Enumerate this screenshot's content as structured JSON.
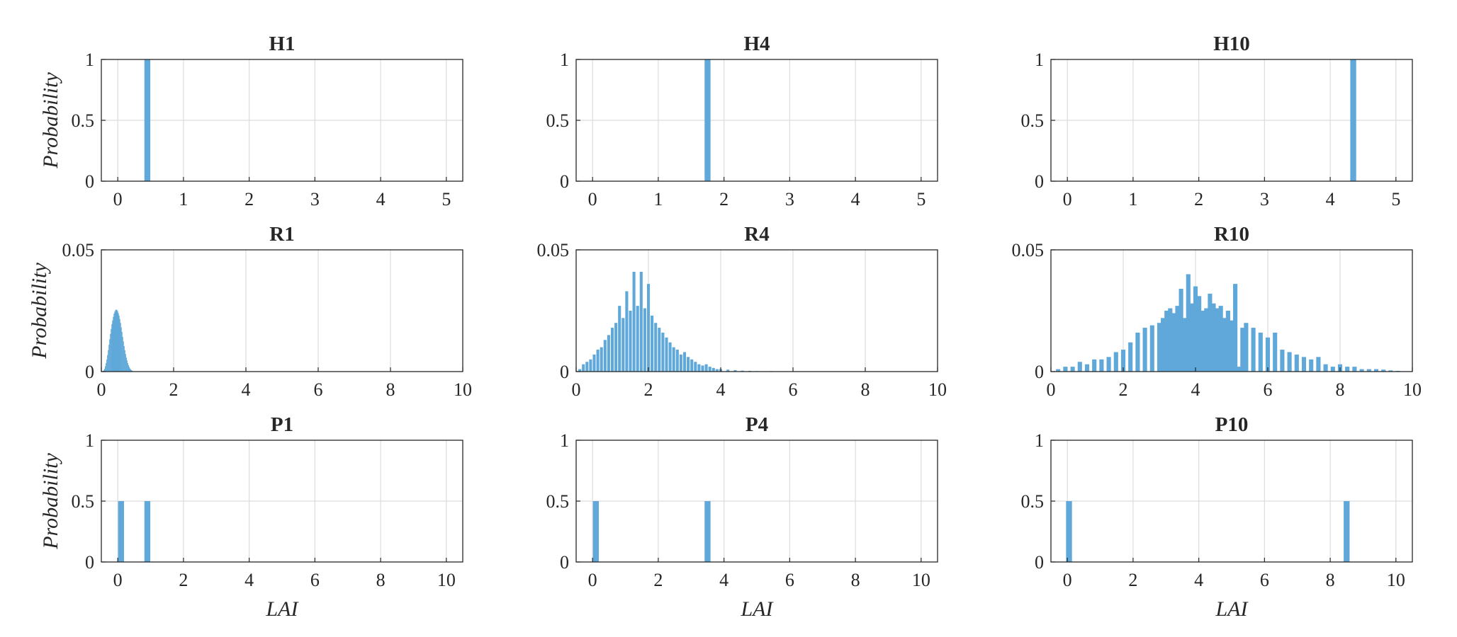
{
  "figure": {
    "bar_color": "#5fa8d9",
    "grid": true
  },
  "chart_data": [
    {
      "type": "bar",
      "title": "H1",
      "ylabel": "Probability",
      "xlabel": "",
      "xlim": [
        -0.25,
        5.25
      ],
      "ylim": [
        0,
        1
      ],
      "xticks": [
        0,
        1,
        2,
        3,
        4,
        5
      ],
      "yticks": [
        0,
        0.5,
        1
      ],
      "ytick_labels": [
        "0",
        "0.5",
        "1"
      ],
      "bar_width": 0.09,
      "bars": [
        {
          "x": 0.45,
          "y": 1
        }
      ]
    },
    {
      "type": "bar",
      "title": "H4",
      "ylabel": "",
      "xlabel": "",
      "xlim": [
        -0.25,
        5.25
      ],
      "ylim": [
        0,
        1
      ],
      "xticks": [
        0,
        1,
        2,
        3,
        4,
        5
      ],
      "yticks": [
        0,
        0.5,
        1
      ],
      "ytick_labels": [
        "0",
        "0.5",
        "1"
      ],
      "bar_width": 0.09,
      "bars": [
        {
          "x": 1.75,
          "y": 1
        }
      ]
    },
    {
      "type": "bar",
      "title": "H10",
      "ylabel": "",
      "xlabel": "",
      "xlim": [
        -0.25,
        5.25
      ],
      "ylim": [
        0,
        1
      ],
      "xticks": [
        0,
        1,
        2,
        3,
        4,
        5
      ],
      "yticks": [
        0,
        0.5,
        1
      ],
      "ytick_labels": [
        "0",
        "0.5",
        "1"
      ],
      "bar_width": 0.09,
      "bars": [
        {
          "x": 4.35,
          "y": 1
        }
      ]
    },
    {
      "type": "bar",
      "title": "R1",
      "ylabel": "Probability",
      "xlabel": "",
      "xlim": [
        0,
        10
      ],
      "ylim": [
        0,
        0.05
      ],
      "xticks": [
        0,
        2,
        4,
        6,
        8,
        10
      ],
      "yticks": [
        0,
        0.05
      ],
      "ytick_labels": [
        "0",
        "0.05"
      ],
      "bar_width": 0.02,
      "bars": [
        {
          "x": 0.05,
          "y": 0.0003
        },
        {
          "x": 0.07,
          "y": 0.0006
        },
        {
          "x": 0.09,
          "y": 0.0012
        },
        {
          "x": 0.11,
          "y": 0.0022
        },
        {
          "x": 0.13,
          "y": 0.0035
        },
        {
          "x": 0.15,
          "y": 0.005
        },
        {
          "x": 0.17,
          "y": 0.0068
        },
        {
          "x": 0.19,
          "y": 0.0088
        },
        {
          "x": 0.21,
          "y": 0.011
        },
        {
          "x": 0.23,
          "y": 0.0133
        },
        {
          "x": 0.25,
          "y": 0.0155
        },
        {
          "x": 0.27,
          "y": 0.0175
        },
        {
          "x": 0.29,
          "y": 0.0195
        },
        {
          "x": 0.31,
          "y": 0.021
        },
        {
          "x": 0.33,
          "y": 0.0225
        },
        {
          "x": 0.35,
          "y": 0.0238
        },
        {
          "x": 0.37,
          "y": 0.0246
        },
        {
          "x": 0.39,
          "y": 0.0252
        },
        {
          "x": 0.41,
          "y": 0.0255
        },
        {
          "x": 0.43,
          "y": 0.0253
        },
        {
          "x": 0.45,
          "y": 0.0248
        },
        {
          "x": 0.47,
          "y": 0.024
        },
        {
          "x": 0.49,
          "y": 0.023
        },
        {
          "x": 0.51,
          "y": 0.0216
        },
        {
          "x": 0.53,
          "y": 0.02
        },
        {
          "x": 0.55,
          "y": 0.0182
        },
        {
          "x": 0.57,
          "y": 0.0163
        },
        {
          "x": 0.59,
          "y": 0.0143
        },
        {
          "x": 0.61,
          "y": 0.0124
        },
        {
          "x": 0.63,
          "y": 0.0105
        },
        {
          "x": 0.65,
          "y": 0.0088
        },
        {
          "x": 0.67,
          "y": 0.0072
        },
        {
          "x": 0.69,
          "y": 0.0058
        },
        {
          "x": 0.71,
          "y": 0.0046
        },
        {
          "x": 0.73,
          "y": 0.0035
        },
        {
          "x": 0.75,
          "y": 0.0026
        },
        {
          "x": 0.77,
          "y": 0.0019
        },
        {
          "x": 0.79,
          "y": 0.0013
        },
        {
          "x": 0.81,
          "y": 0.0009
        },
        {
          "x": 0.83,
          "y": 0.0006
        },
        {
          "x": 0.85,
          "y": 0.0004
        },
        {
          "x": 0.87,
          "y": 0.0002
        },
        {
          "x": 0.9,
          "y": 0.0001
        }
      ]
    },
    {
      "type": "bar",
      "title": "R4",
      "ylabel": "",
      "xlabel": "",
      "xlim": [
        0,
        10
      ],
      "ylim": [
        0,
        0.05
      ],
      "xticks": [
        0,
        2,
        4,
        6,
        8,
        10
      ],
      "yticks": [
        0,
        0.05
      ],
      "ytick_labels": [
        "0",
        "0.05"
      ],
      "bar_width": 0.08,
      "bars": [
        {
          "x": 0.1,
          "y": 0.001
        },
        {
          "x": 0.2,
          "y": 0.003
        },
        {
          "x": 0.3,
          "y": 0.004
        },
        {
          "x": 0.4,
          "y": 0.005
        },
        {
          "x": 0.5,
          "y": 0.007
        },
        {
          "x": 0.6,
          "y": 0.009
        },
        {
          "x": 0.7,
          "y": 0.01
        },
        {
          "x": 0.8,
          "y": 0.013
        },
        {
          "x": 0.9,
          "y": 0.015
        },
        {
          "x": 1.0,
          "y": 0.018
        },
        {
          "x": 1.1,
          "y": 0.02
        },
        {
          "x": 1.2,
          "y": 0.027
        },
        {
          "x": 1.3,
          "y": 0.022
        },
        {
          "x": 1.4,
          "y": 0.033
        },
        {
          "x": 1.5,
          "y": 0.025
        },
        {
          "x": 1.6,
          "y": 0.041
        },
        {
          "x": 1.7,
          "y": 0.027
        },
        {
          "x": 1.8,
          "y": 0.041
        },
        {
          "x": 1.9,
          "y": 0.026
        },
        {
          "x": 2.0,
          "y": 0.036
        },
        {
          "x": 2.1,
          "y": 0.023
        },
        {
          "x": 2.2,
          "y": 0.02
        },
        {
          "x": 2.3,
          "y": 0.018
        },
        {
          "x": 2.4,
          "y": 0.016
        },
        {
          "x": 2.5,
          "y": 0.014
        },
        {
          "x": 2.6,
          "y": 0.012
        },
        {
          "x": 2.7,
          "y": 0.01
        },
        {
          "x": 2.8,
          "y": 0.009
        },
        {
          "x": 2.9,
          "y": 0.007
        },
        {
          "x": 3.0,
          "y": 0.008
        },
        {
          "x": 3.1,
          "y": 0.006
        },
        {
          "x": 3.2,
          "y": 0.005
        },
        {
          "x": 3.3,
          "y": 0.004
        },
        {
          "x": 3.4,
          "y": 0.003
        },
        {
          "x": 3.5,
          "y": 0.0025
        },
        {
          "x": 3.6,
          "y": 0.003
        },
        {
          "x": 3.7,
          "y": 0.002
        },
        {
          "x": 3.8,
          "y": 0.0015
        },
        {
          "x": 3.9,
          "y": 0.001
        },
        {
          "x": 4.0,
          "y": 0.001
        },
        {
          "x": 4.2,
          "y": 0.0008
        },
        {
          "x": 4.4,
          "y": 0.0006
        },
        {
          "x": 4.6,
          "y": 0.0004
        },
        {
          "x": 4.8,
          "y": 0.0003
        },
        {
          "x": 5.0,
          "y": 0.0002
        },
        {
          "x": 5.4,
          "y": 0.0002
        },
        {
          "x": 5.8,
          "y": 0.0001
        }
      ]
    },
    {
      "type": "bar",
      "title": "R10",
      "ylabel": "",
      "xlabel": "",
      "xlim": [
        0,
        10
      ],
      "ylim": [
        0,
        0.05
      ],
      "xticks": [
        0,
        2,
        4,
        6,
        8,
        10
      ],
      "yticks": [
        0,
        0.05
      ],
      "ytick_labels": [
        "0",
        "0.05"
      ],
      "bar_width": 0.12,
      "bars": [
        {
          "x": 0.2,
          "y": 0.001
        },
        {
          "x": 0.4,
          "y": 0.002
        },
        {
          "x": 0.6,
          "y": 0.002
        },
        {
          "x": 0.8,
          "y": 0.004
        },
        {
          "x": 1.0,
          "y": 0.003
        },
        {
          "x": 1.2,
          "y": 0.005
        },
        {
          "x": 1.4,
          "y": 0.005
        },
        {
          "x": 1.6,
          "y": 0.006
        },
        {
          "x": 1.8,
          "y": 0.008
        },
        {
          "x": 2.0,
          "y": 0.009
        },
        {
          "x": 2.2,
          "y": 0.012
        },
        {
          "x": 2.4,
          "y": 0.016
        },
        {
          "x": 2.6,
          "y": 0.018
        },
        {
          "x": 2.8,
          "y": 0.019
        },
        {
          "x": 3.0,
          "y": 0.02
        },
        {
          "x": 3.1,
          "y": 0.022
        },
        {
          "x": 3.2,
          "y": 0.025
        },
        {
          "x": 3.3,
          "y": 0.026
        },
        {
          "x": 3.4,
          "y": 0.024
        },
        {
          "x": 3.5,
          "y": 0.027
        },
        {
          "x": 3.6,
          "y": 0.034
        },
        {
          "x": 3.7,
          "y": 0.022
        },
        {
          "x": 3.8,
          "y": 0.04
        },
        {
          "x": 3.9,
          "y": 0.028
        },
        {
          "x": 4.0,
          "y": 0.035
        },
        {
          "x": 4.1,
          "y": 0.031
        },
        {
          "x": 4.2,
          "y": 0.025
        },
        {
          "x": 4.3,
          "y": 0.026
        },
        {
          "x": 4.4,
          "y": 0.032
        },
        {
          "x": 4.5,
          "y": 0.028
        },
        {
          "x": 4.6,
          "y": 0.026
        },
        {
          "x": 4.7,
          "y": 0.027
        },
        {
          "x": 4.8,
          "y": 0.022
        },
        {
          "x": 4.9,
          "y": 0.025
        },
        {
          "x": 5.0,
          "y": 0.021
        },
        {
          "x": 5.1,
          "y": 0.036
        },
        {
          "x": 5.2,
          "y": 0.002
        },
        {
          "x": 5.3,
          "y": 0.018
        },
        {
          "x": 5.4,
          "y": 0.02
        },
        {
          "x": 5.6,
          "y": 0.018
        },
        {
          "x": 5.8,
          "y": 0.016
        },
        {
          "x": 6.0,
          "y": 0.014
        },
        {
          "x": 6.2,
          "y": 0.016
        },
        {
          "x": 6.4,
          "y": 0.009
        },
        {
          "x": 6.6,
          "y": 0.008
        },
        {
          "x": 6.8,
          "y": 0.007
        },
        {
          "x": 7.0,
          "y": 0.006
        },
        {
          "x": 7.2,
          "y": 0.005
        },
        {
          "x": 7.4,
          "y": 0.006
        },
        {
          "x": 7.6,
          "y": 0.003
        },
        {
          "x": 7.8,
          "y": 0.002
        },
        {
          "x": 8.0,
          "y": 0.003
        },
        {
          "x": 8.2,
          "y": 0.002
        },
        {
          "x": 8.4,
          "y": 0.002
        },
        {
          "x": 8.6,
          "y": 0.001
        },
        {
          "x": 8.8,
          "y": 0.001
        },
        {
          "x": 9.0,
          "y": 0.001
        },
        {
          "x": 9.2,
          "y": 0.0008
        },
        {
          "x": 9.4,
          "y": 0.0005
        },
        {
          "x": 9.6,
          "y": 0.0003
        }
      ]
    },
    {
      "type": "bar",
      "title": "P1",
      "ylabel": "Probability",
      "xlabel": "LAI",
      "xlim": [
        -0.5,
        10.5
      ],
      "ylim": [
        0,
        1
      ],
      "xticks": [
        0,
        2,
        4,
        6,
        8,
        10
      ],
      "yticks": [
        0,
        0.5,
        1
      ],
      "ytick_labels": [
        "0",
        "0.5",
        "1"
      ],
      "bar_width": 0.18,
      "bars": [
        {
          "x": 0.1,
          "y": 0.5
        },
        {
          "x": 0.9,
          "y": 0.5
        }
      ]
    },
    {
      "type": "bar",
      "title": "P4",
      "ylabel": "",
      "xlabel": "LAI",
      "xlim": [
        -0.5,
        10.5
      ],
      "ylim": [
        0,
        1
      ],
      "xticks": [
        0,
        2,
        4,
        6,
        8,
        10
      ],
      "yticks": [
        0,
        0.5,
        1
      ],
      "ytick_labels": [
        "0",
        "0.5",
        "1"
      ],
      "bar_width": 0.18,
      "bars": [
        {
          "x": 0.1,
          "y": 0.5
        },
        {
          "x": 3.5,
          "y": 0.5
        }
      ]
    },
    {
      "type": "bar",
      "title": "P10",
      "ylabel": "",
      "xlabel": "LAI",
      "xlim": [
        -0.5,
        10.5
      ],
      "ylim": [
        0,
        1
      ],
      "xticks": [
        0,
        2,
        4,
        6,
        8,
        10
      ],
      "yticks": [
        0,
        0.5,
        1
      ],
      "ytick_labels": [
        "0",
        "0.5",
        "1"
      ],
      "bar_width": 0.18,
      "bars": [
        {
          "x": 0.05,
          "y": 0.5
        },
        {
          "x": 8.5,
          "y": 0.5
        }
      ]
    }
  ]
}
